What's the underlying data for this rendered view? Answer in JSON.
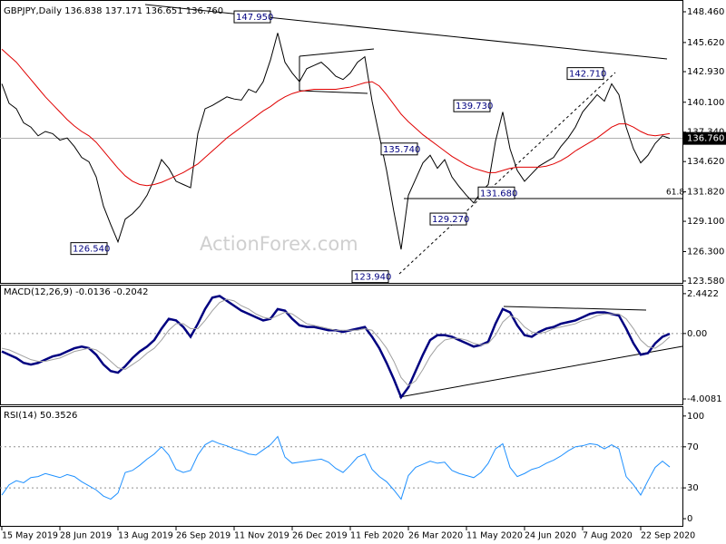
{
  "watermark": "ActionForex.com",
  "chart_data": [
    {
      "type": "line",
      "title": "GBPJPY,Daily  136.838 137.171 136.651 136.760",
      "ylim": [
        123.41,
        149.38
      ],
      "yticks": [
        {
          "value": 148.46,
          "label": "148.460"
        },
        {
          "value": 145.62,
          "label": "145.620"
        },
        {
          "value": 142.93,
          "label": "142.930"
        },
        {
          "value": 140.1,
          "label": "140.100"
        },
        {
          "value": 137.34,
          "label": "137.340"
        },
        {
          "value": 134.62,
          "label": "134.620"
        },
        {
          "value": 131.82,
          "label": "131.820"
        },
        {
          "value": 129.1,
          "label": "129.100"
        },
        {
          "value": 126.3,
          "label": "126.300"
        },
        {
          "value": 123.58,
          "label": "123.580"
        }
      ],
      "series": [
        {
          "color": "#000000",
          "values": [
            141.8,
            140.0,
            139.5,
            138.2,
            137.8,
            137.0,
            137.4,
            137.2,
            136.6,
            136.8,
            136.0,
            135.0,
            134.6,
            133.2,
            130.5,
            128.8,
            127.2,
            129.3,
            129.8,
            130.5,
            131.5,
            133.0,
            134.8,
            134.0,
            132.8,
            132.5,
            132.2,
            137.2,
            139.5,
            139.8,
            140.2,
            140.6,
            140.4,
            140.3,
            141.3,
            141.0,
            142.0,
            144.0,
            146.5,
            143.8,
            142.8,
            142.0,
            143.2,
            143.5,
            143.8,
            143.2,
            142.5,
            142.2,
            142.8,
            143.8,
            144.3,
            140.2,
            137.0,
            133.8,
            130.0,
            126.5,
            131.5,
            133.0,
            134.5,
            135.2,
            134.0,
            134.8,
            133.2,
            132.3,
            131.5,
            130.8,
            131.8,
            132.5,
            136.5,
            139.2,
            135.8,
            133.8,
            132.8,
            133.5,
            134.2,
            134.6,
            135.0,
            136.0,
            136.8,
            137.8,
            139.2,
            140.0,
            140.8,
            140.2,
            141.8,
            140.8,
            137.8,
            135.8,
            134.5,
            135.2,
            136.3,
            137.0,
            136.76
          ]
        },
        {
          "color": "#e00000",
          "values": [
            145.0,
            144.4,
            143.8,
            143.0,
            142.2,
            141.4,
            140.6,
            139.9,
            139.2,
            138.5,
            137.9,
            137.4,
            137.0,
            136.4,
            135.6,
            134.8,
            134.0,
            133.3,
            132.8,
            132.5,
            132.4,
            132.5,
            132.7,
            133.0,
            133.3,
            133.6,
            134.0,
            134.4,
            135.0,
            135.6,
            136.2,
            136.8,
            137.3,
            137.8,
            138.3,
            138.8,
            139.3,
            139.7,
            140.2,
            140.6,
            140.9,
            141.1,
            141.2,
            141.3,
            141.3,
            141.3,
            141.3,
            141.4,
            141.5,
            141.7,
            141.9,
            142.0,
            141.6,
            140.8,
            139.9,
            139.0,
            138.3,
            137.7,
            137.1,
            136.6,
            136.1,
            135.6,
            135.1,
            134.7,
            134.3,
            134.0,
            133.8,
            133.6,
            133.6,
            133.8,
            134.0,
            134.1,
            134.1,
            134.1,
            134.1,
            134.2,
            134.4,
            134.7,
            135.1,
            135.6,
            136.0,
            136.4,
            136.8,
            137.3,
            137.8,
            138.1,
            138.1,
            137.8,
            137.4,
            137.1,
            137.0,
            137.1,
            137.2
          ]
        }
      ],
      "last_value": {
        "value": 136.76,
        "label": "136.760"
      },
      "annotations": [
        {
          "value": 147.95,
          "label": "147.950"
        },
        {
          "value": 142.71,
          "label": "142.710"
        },
        {
          "value": 139.73,
          "label": "139.730"
        },
        {
          "value": 135.74,
          "label": "135.740"
        },
        {
          "value": 131.68,
          "label": "131.680"
        },
        {
          "value": 129.27,
          "label": "129.270"
        },
        {
          "value": 126.54,
          "label": "126.540"
        },
        {
          "value": 123.94,
          "label": "123.940"
        }
      ],
      "fib_label": "61.8"
    },
    {
      "type": "line",
      "title": "MACD(12,26,9) -0.0136 -0.2042",
      "ylim": [
        -4.34,
        2.88
      ],
      "yticks": [
        2.4422,
        {
          "value": 0,
          "label": "0.00"
        },
        -4.0081
      ],
      "levels": [
        0
      ],
      "series": [
        {
          "color": "#000080",
          "values": [
            -1.1,
            -1.3,
            -1.5,
            -1.8,
            -1.9,
            -1.8,
            -1.6,
            -1.4,
            -1.3,
            -1.1,
            -0.9,
            -0.8,
            -0.9,
            -1.3,
            -1.9,
            -2.3,
            -2.4,
            -2.0,
            -1.5,
            -1.1,
            -0.8,
            -0.4,
            0.3,
            0.9,
            0.8,
            0.4,
            -0.2,
            0.6,
            1.5,
            2.2,
            2.3,
            2.0,
            1.7,
            1.4,
            1.2,
            1.0,
            0.8,
            0.9,
            1.5,
            1.4,
            0.9,
            0.5,
            0.4,
            0.4,
            0.3,
            0.2,
            0.2,
            0.1,
            0.2,
            0.3,
            0.4,
            -0.2,
            -0.9,
            -1.8,
            -2.8,
            -3.9,
            -3.3,
            -2.3,
            -1.3,
            -0.4,
            -0.1,
            -0.1,
            -0.2,
            -0.4,
            -0.6,
            -0.8,
            -0.7,
            -0.5,
            0.6,
            1.5,
            1.3,
            0.5,
            -0.1,
            -0.2,
            0.1,
            0.3,
            0.4,
            0.6,
            0.7,
            0.8,
            1.0,
            1.2,
            1.3,
            1.3,
            1.2,
            1.1,
            0.3,
            -0.6,
            -1.3,
            -1.2,
            -0.6,
            -0.2,
            -0.0136
          ]
        },
        {
          "color": "#a0a0a0",
          "values": [
            -0.9,
            -1.0,
            -1.2,
            -1.4,
            -1.6,
            -1.7,
            -1.7,
            -1.6,
            -1.5,
            -1.3,
            -1.1,
            -1.0,
            -0.9,
            -1.0,
            -1.3,
            -1.7,
            -2.1,
            -2.2,
            -1.9,
            -1.6,
            -1.2,
            -0.9,
            -0.4,
            0.2,
            0.6,
            0.6,
            0.3,
            0.3,
            0.8,
            1.4,
            1.9,
            2.1,
            2.0,
            1.7,
            1.5,
            1.2,
            1.0,
            0.9,
            1.1,
            1.3,
            1.2,
            0.9,
            0.6,
            0.5,
            0.4,
            0.3,
            0.2,
            0.2,
            0.2,
            0.2,
            0.3,
            0.2,
            -0.3,
            -0.9,
            -1.7,
            -2.7,
            -3.2,
            -2.9,
            -2.2,
            -1.4,
            -0.8,
            -0.4,
            -0.3,
            -0.3,
            -0.4,
            -0.6,
            -0.7,
            -0.6,
            -0.1,
            0.7,
            1.1,
            0.9,
            0.4,
            0.1,
            0.0,
            0.1,
            0.3,
            0.4,
            0.5,
            0.6,
            0.8,
            0.9,
            1.1,
            1.2,
            1.2,
            1.2,
            0.9,
            0.3,
            -0.4,
            -0.8,
            -0.9,
            -0.6,
            -0.2042
          ]
        }
      ]
    },
    {
      "type": "line",
      "title": "RSI(14) 50.3526",
      "ylim": [
        -7,
        107.8
      ],
      "yticks": [
        100,
        70,
        30,
        0
      ],
      "levels": [
        70,
        30
      ],
      "categories": [
        "15 May 2019",
        null,
        null,
        null,
        null,
        null,
        null,
        null,
        "28 Jun 2019",
        null,
        null,
        null,
        null,
        null,
        null,
        null,
        "13 Aug 2019",
        null,
        null,
        null,
        null,
        null,
        null,
        null,
        "26 Sep 2019",
        null,
        null,
        null,
        null,
        null,
        null,
        null,
        "11 Nov 2019",
        null,
        null,
        null,
        null,
        null,
        null,
        null,
        "26 Dec 2019",
        null,
        null,
        null,
        null,
        null,
        null,
        null,
        "11 Feb 2020",
        null,
        null,
        null,
        null,
        null,
        null,
        null,
        "26 Mar 2020",
        null,
        null,
        null,
        null,
        null,
        null,
        null,
        "11 May 2020",
        null,
        null,
        null,
        null,
        null,
        null,
        null,
        "24 Jun 2020",
        null,
        null,
        null,
        null,
        null,
        null,
        null,
        "7 Aug 2020",
        null,
        null,
        null,
        null,
        null,
        null,
        null,
        "22 Sep 2020",
        null,
        null,
        null,
        null
      ],
      "series": [
        {
          "color": "#1e90ff",
          "values": [
            23,
            33,
            37,
            35,
            40,
            41,
            44,
            42,
            40,
            43,
            41,
            36,
            32,
            28,
            22,
            19,
            25,
            45,
            47,
            52,
            58,
            63,
            70,
            62,
            48,
            45,
            47,
            62,
            72,
            76,
            73,
            71,
            68,
            66,
            63,
            62,
            67,
            72,
            80,
            60,
            54,
            55,
            56,
            57,
            58,
            55,
            49,
            45,
            52,
            60,
            63,
            48,
            41,
            36,
            28,
            19,
            42,
            50,
            53,
            56,
            54,
            55,
            47,
            44,
            42,
            40,
            45,
            54,
            68,
            73,
            50,
            41,
            44,
            48,
            50,
            54,
            57,
            61,
            66,
            70,
            71,
            73,
            72,
            68,
            72,
            68,
            41,
            33,
            23,
            37,
            50,
            56,
            50.35
          ]
        }
      ]
    }
  ]
}
